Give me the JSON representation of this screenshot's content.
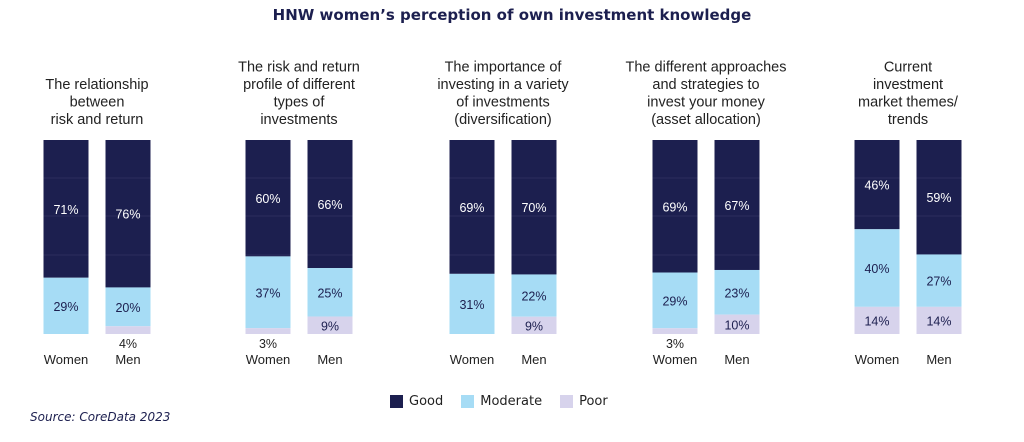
{
  "chart_data": {
    "type": "bar",
    "stacked": true,
    "title": "HNW women’s perception of own investment knowledge",
    "source": "Source: CoreData 2023",
    "legend_position": "bottom",
    "segments": [
      "Good",
      "Moderate",
      "Poor"
    ],
    "colors": {
      "Good": "#1c1f4f",
      "Moderate": "#a6dcf5",
      "Poor": "#d7d3ec"
    },
    "groups": [
      {
        "label_lines": [
          "The relationship",
          "between",
          "risk and return"
        ],
        "bars": [
          {
            "category": "Women",
            "Good": 71,
            "Moderate": 29,
            "Poor": 0,
            "labels": {
              "Good": "71%",
              "Moderate": "29%",
              "Poor": ""
            }
          },
          {
            "category": "Men",
            "Good": 76,
            "Moderate": 20,
            "Poor": 4,
            "labels": {
              "Good": "76%",
              "Moderate": "20%",
              "Poor": "4%"
            }
          }
        ]
      },
      {
        "label_lines": [
          "The risk and return",
          "profile of different",
          "types of",
          "investments"
        ],
        "bars": [
          {
            "category": "Women",
            "Good": 60,
            "Moderate": 37,
            "Poor": 3,
            "labels": {
              "Good": "60%",
              "Moderate": "37%",
              "Poor": "3%"
            }
          },
          {
            "category": "Men",
            "Good": 66,
            "Moderate": 25,
            "Poor": 9,
            "labels": {
              "Good": "66%",
              "Moderate": "25%",
              "Poor": "9%"
            }
          }
        ]
      },
      {
        "label_lines": [
          "The importance of",
          "investing in a variety",
          "of investments",
          "(diversification)"
        ],
        "bars": [
          {
            "category": "Women",
            "Good": 69,
            "Moderate": 31,
            "Poor": 0,
            "labels": {
              "Good": "69%",
              "Moderate": "31%",
              "Poor": ""
            }
          },
          {
            "category": "Men",
            "Good": 70,
            "Moderate": 22,
            "Poor": 9,
            "labels": {
              "Good": "70%",
              "Moderate": "22%",
              "Poor": "9%"
            }
          }
        ]
      },
      {
        "label_lines": [
          "The different approaches",
          "and strategies to",
          "invest your money",
          "(asset allocation)"
        ],
        "bars": [
          {
            "category": "Women",
            "Good": 69,
            "Moderate": 29,
            "Poor": 3,
            "labels": {
              "Good": "69%",
              "Moderate": "29%",
              "Poor": "3%"
            }
          },
          {
            "category": "Men",
            "Good": 67,
            "Moderate": 23,
            "Poor": 10,
            "labels": {
              "Good": "67%",
              "Moderate": "23%",
              "Poor": "10%"
            }
          }
        ]
      },
      {
        "label_lines": [
          "Current",
          "investment",
          "market themes/",
          "trends"
        ],
        "bars": [
          {
            "category": "Women",
            "Good": 46,
            "Moderate": 40,
            "Poor": 14,
            "labels": {
              "Good": "46%",
              "Moderate": "40%",
              "Poor": "14%"
            }
          },
          {
            "category": "Men",
            "Good": 59,
            "Moderate": 27,
            "Poor": 14,
            "labels": {
              "Good": "59%",
              "Moderate": "27%",
              "Poor": "14%"
            }
          }
        ]
      }
    ]
  }
}
